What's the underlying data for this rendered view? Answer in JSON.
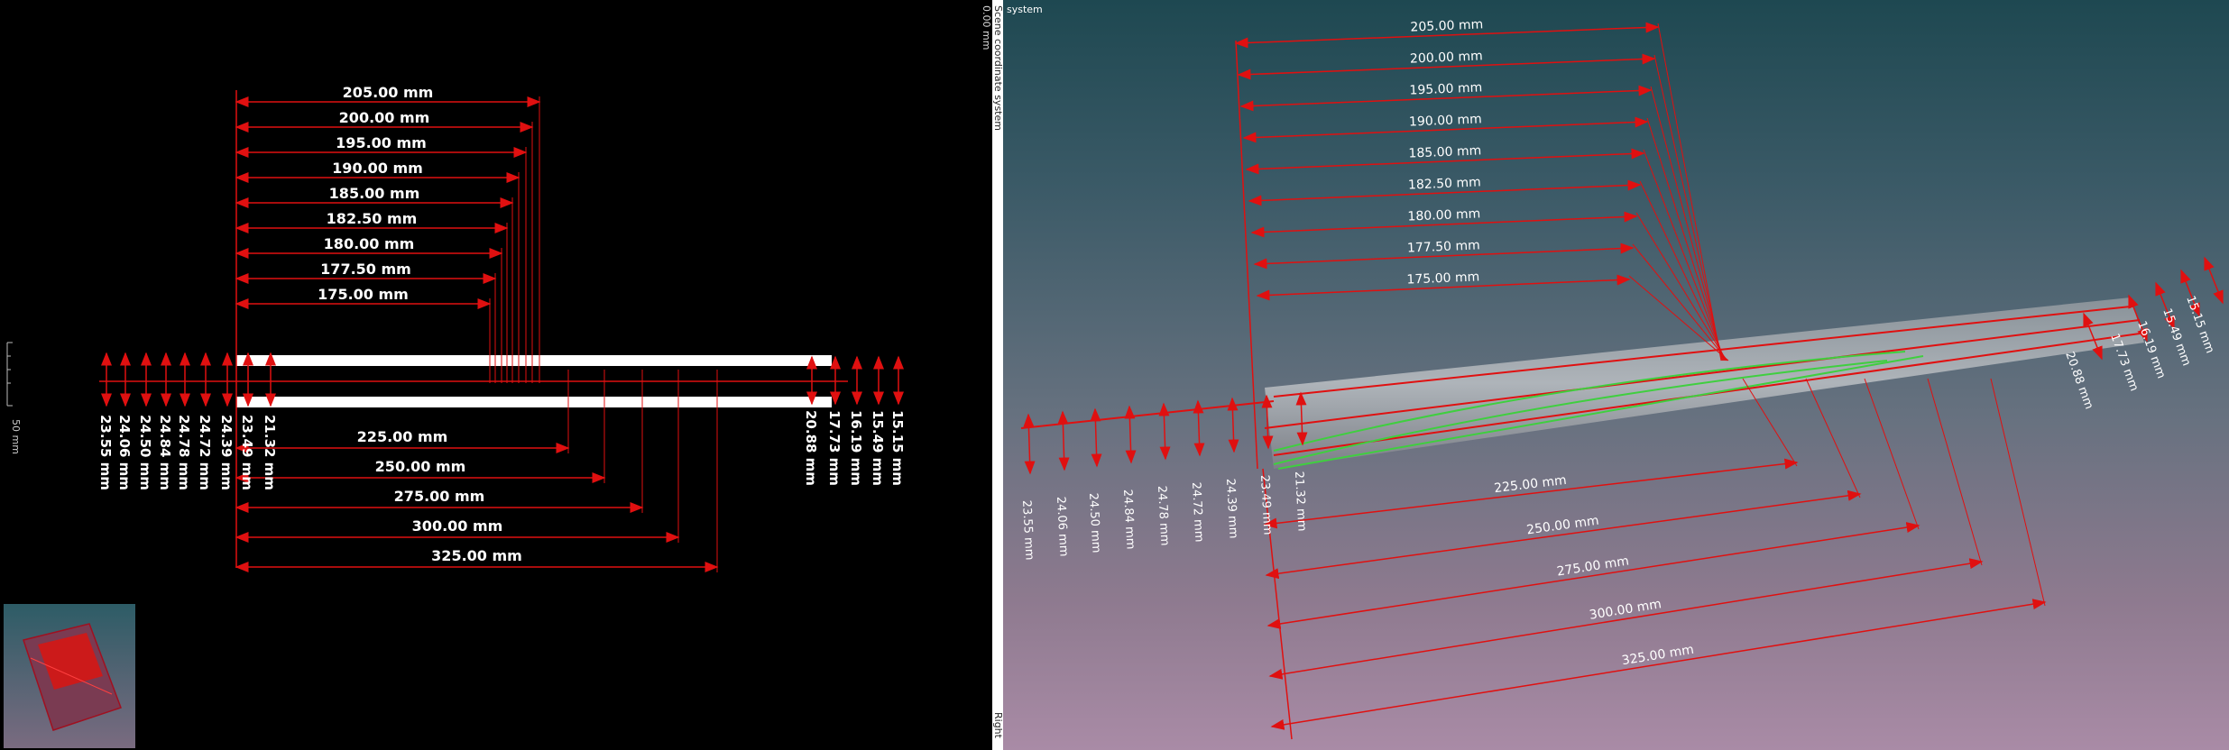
{
  "left_view": {
    "scale_label": "50 mm",
    "top_dims": [
      "205.00 mm",
      "200.00 mm",
      "195.00 mm",
      "190.00 mm",
      "185.00 mm",
      "182.50 mm",
      "180.00 mm",
      "177.50 mm",
      "175.00 mm"
    ],
    "bottom_dims": [
      "225.00 mm",
      "250.00 mm",
      "275.00 mm",
      "300.00 mm",
      "325.00 mm"
    ],
    "left_diameters": [
      "23.55 mm",
      "24.06 mm",
      "24.50 mm",
      "24.84 mm",
      "24.78 mm",
      "24.72 mm",
      "24.39 mm",
      "23.49 mm",
      "21.32 mm"
    ],
    "right_diameters": [
      "20.88 mm",
      "17.73 mm",
      "16.19 mm",
      "15.49 mm",
      "15.15 mm"
    ]
  },
  "divider": {
    "top_label": "Scene coordinate system",
    "top_value": "0.00 mm",
    "bottom_label": "Right"
  },
  "right_view": {
    "system_label": "system",
    "top_dims": [
      "205.00 mm",
      "200.00 mm",
      "195.00 mm",
      "190.00 mm",
      "185.00 mm",
      "182.50 mm",
      "180.00 mm",
      "177.50 mm",
      "175.00 mm"
    ],
    "bottom_dims": [
      "225.00 mm",
      "250.00 mm",
      "275.00 mm",
      "300.00 mm",
      "325.00 mm"
    ],
    "left_diameters": [
      "23.55 mm",
      "24.06 mm",
      "24.50 mm",
      "24.84 mm",
      "24.78 mm",
      "24.72 mm",
      "24.39 mm",
      "23.49 mm",
      "21.32 mm"
    ],
    "right_diameters": [
      "20.88 mm",
      "17.73 mm",
      "16.19 mm",
      "15.49 mm",
      "15.15 mm"
    ]
  }
}
